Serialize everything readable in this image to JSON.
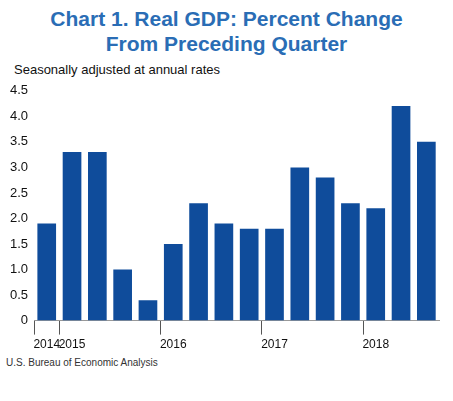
{
  "chart_data": {
    "type": "bar",
    "title": "Chart 1. Real GDP: Percent Change From Preceding Quarter",
    "subtitle": "Seasonally adjusted at annual rates",
    "source": "U.S. Bureau of Economic Analysis",
    "categories": [
      "2014",
      "2015",
      null,
      null,
      null,
      "2016",
      null,
      null,
      null,
      "2017",
      null,
      null,
      null,
      "2018",
      null,
      null
    ],
    "values": [
      1.9,
      3.3,
      3.3,
      1.0,
      0.4,
      1.5,
      2.3,
      1.9,
      1.8,
      1.8,
      3.0,
      2.8,
      2.3,
      2.2,
      4.2,
      3.5
    ],
    "color": "#0f4c9b",
    "ylim": [
      0,
      4.5
    ],
    "yticks": [
      0,
      0.5,
      {
        "value": 1,
        "label": "1.0"
      },
      1.5,
      {
        "value": 2,
        "label": "2.0"
      },
      2.5,
      {
        "value": 3,
        "label": "3.0"
      },
      3.5,
      {
        "value": 4,
        "label": "4.0"
      },
      4.5
    ],
    "grid": false
  }
}
